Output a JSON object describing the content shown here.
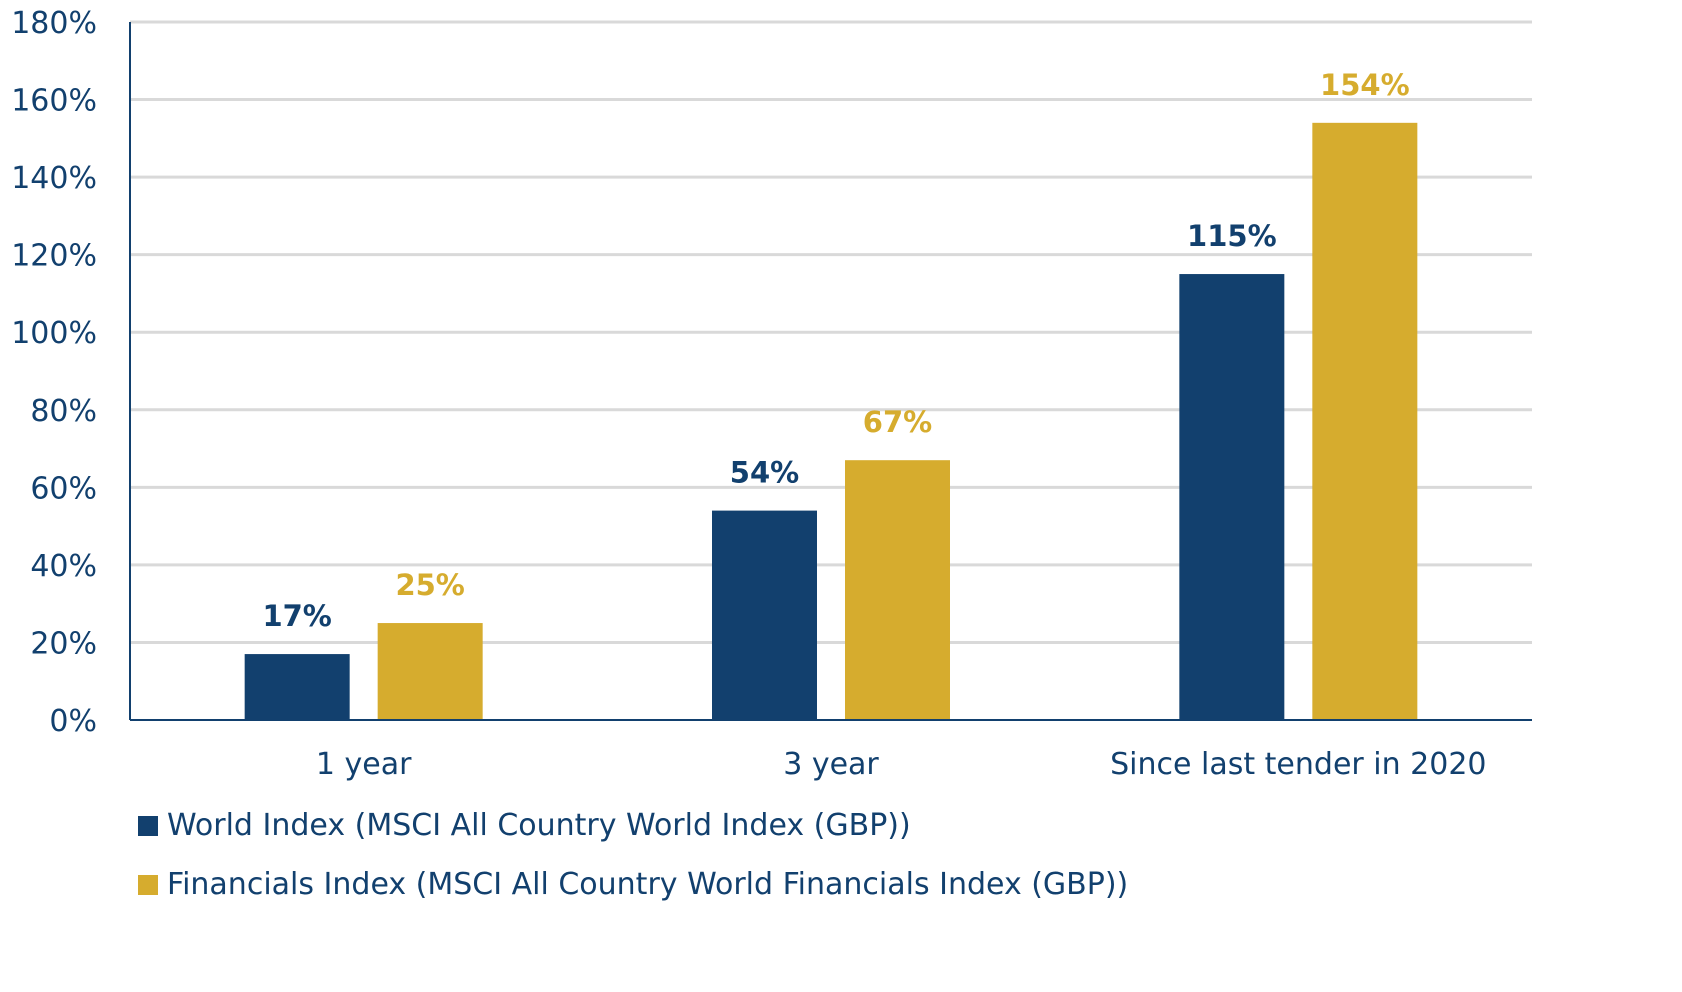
{
  "chart_data": {
    "type": "bar",
    "title": "",
    "xlabel": "",
    "ylabel": "",
    "categories": [
      "1 year",
      "3 year",
      "Since last tender in 2020"
    ],
    "series": [
      {
        "name": "World Index (MSCI All Country World Index (GBP))",
        "values": [
          17,
          54,
          115
        ],
        "labels": [
          "17%",
          "54%",
          "115%"
        ],
        "color": "#12406E"
      },
      {
        "name": "Financials Index (MSCI All Country World Financials Index (GBP))",
        "values": [
          25,
          67,
          154
        ],
        "labels": [
          "25%",
          "67%",
          "154%"
        ],
        "color": "#D6AC2E"
      }
    ],
    "ylim": [
      0,
      180
    ],
    "yticks": [
      0,
      20,
      40,
      60,
      80,
      100,
      120,
      140,
      160,
      180
    ],
    "ytick_labels": [
      "0%",
      "20%",
      "40%",
      "60%",
      "80%",
      "100%",
      "120%",
      "140%",
      "160%",
      "180%"
    ],
    "grid": true,
    "legend_position": "bottom-left",
    "axis_color": "#12406E",
    "grid_color": "#D9D9D9"
  }
}
